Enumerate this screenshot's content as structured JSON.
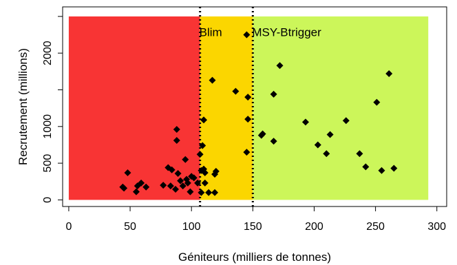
{
  "chart_data": {
    "type": "scatter",
    "xlabel": "Géniteurs (milliers de tonnes)",
    "ylabel": "Recrutement (millions)",
    "xlim": [
      -5,
      308
    ],
    "ylim": [
      -90,
      2630
    ],
    "xticks": [
      0,
      50,
      100,
      150,
      200,
      250,
      300
    ],
    "yticks": [
      0,
      500,
      1000,
      2000
    ],
    "zones": [
      {
        "from": 0,
        "to": 107,
        "color": "#f83434"
      },
      {
        "from": 107,
        "to": 150,
        "color": "#fbd600"
      },
      {
        "from": 150,
        "to": 293,
        "color": "#ccf65a"
      }
    ],
    "zone_top": 2500,
    "reference_lines": [
      {
        "x": 107,
        "label": "Blim"
      },
      {
        "x": 150,
        "label": "MSY-Btrigger"
      }
    ],
    "marker_color": "#000000",
    "points": [
      {
        "x": 44,
        "y": 175
      },
      {
        "x": 45,
        "y": 160
      },
      {
        "x": 48,
        "y": 370
      },
      {
        "x": 55,
        "y": 110
      },
      {
        "x": 56,
        "y": 190
      },
      {
        "x": 59,
        "y": 230
      },
      {
        "x": 63,
        "y": 175
      },
      {
        "x": 77,
        "y": 200
      },
      {
        "x": 81,
        "y": 440
      },
      {
        "x": 83,
        "y": 190
      },
      {
        "x": 84,
        "y": 410
      },
      {
        "x": 87,
        "y": 145
      },
      {
        "x": 88,
        "y": 960
      },
      {
        "x": 88,
        "y": 810
      },
      {
        "x": 89,
        "y": 360
      },
      {
        "x": 91,
        "y": 260
      },
      {
        "x": 93,
        "y": 190
      },
      {
        "x": 95,
        "y": 550
      },
      {
        "x": 96,
        "y": 280
      },
      {
        "x": 97,
        "y": 230
      },
      {
        "x": 99,
        "y": 110
      },
      {
        "x": 100,
        "y": 320
      },
      {
        "x": 102,
        "y": 300
      },
      {
        "x": 105,
        "y": 230
      },
      {
        "x": 107,
        "y": 620
      },
      {
        "x": 108,
        "y": 100
      },
      {
        "x": 108,
        "y": 400
      },
      {
        "x": 109,
        "y": 740
      },
      {
        "x": 110,
        "y": 1090
      },
      {
        "x": 110,
        "y": 420
      },
      {
        "x": 111,
        "y": 370
      },
      {
        "x": 111,
        "y": 230
      },
      {
        "x": 114,
        "y": 100
      },
      {
        "x": 117,
        "y": 1630
      },
      {
        "x": 119,
        "y": 100
      },
      {
        "x": 119,
        "y": 350
      },
      {
        "x": 120,
        "y": 390
      },
      {
        "x": 136,
        "y": 1480
      },
      {
        "x": 145,
        "y": 2250
      },
      {
        "x": 145,
        "y": 650
      },
      {
        "x": 146,
        "y": 1400
      },
      {
        "x": 146,
        "y": 1100
      },
      {
        "x": 157,
        "y": 880
      },
      {
        "x": 158,
        "y": 900
      },
      {
        "x": 167,
        "y": 1440
      },
      {
        "x": 167,
        "y": 800
      },
      {
        "x": 172,
        "y": 1830
      },
      {
        "x": 193,
        "y": 1060
      },
      {
        "x": 203,
        "y": 750
      },
      {
        "x": 210,
        "y": 630
      },
      {
        "x": 213,
        "y": 890
      },
      {
        "x": 226,
        "y": 1080
      },
      {
        "x": 237,
        "y": 630
      },
      {
        "x": 242,
        "y": 450
      },
      {
        "x": 251,
        "y": 1330
      },
      {
        "x": 255,
        "y": 400
      },
      {
        "x": 261,
        "y": 1720
      },
      {
        "x": 265,
        "y": 430
      }
    ]
  }
}
